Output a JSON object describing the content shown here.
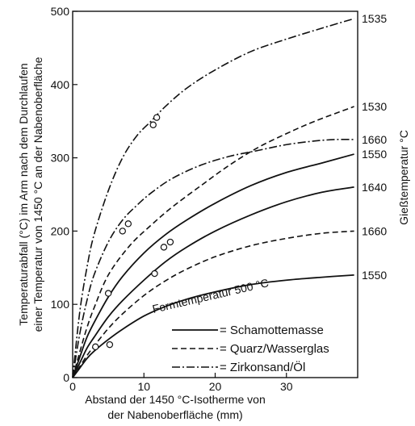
{
  "chart_data": {
    "type": "line",
    "title": "",
    "xlabel_lines": [
      "Abstand der 1450 °C-Isotherme von",
      "der Nabenoberfläche (mm)"
    ],
    "ylabel_lines": [
      "Temperaturabfall (°C) im Arm nach dem Durchlaufen",
      "einer Temperatur von 1450 °C an der Nabenoberfläche"
    ],
    "y2label": "Gießtemperatur °C",
    "xlim": [
      0,
      40
    ],
    "ylim": [
      0,
      500
    ],
    "xticks": [
      0,
      10,
      20,
      30
    ],
    "yticks": [
      0,
      100,
      200,
      300,
      400,
      500
    ],
    "xtick_labels": [
      "0",
      "10",
      "20",
      "30"
    ],
    "ytick_labels": [
      "0",
      "100",
      "200",
      "300",
      "400",
      "500"
    ],
    "grid": false,
    "legend_position": "bottom-right",
    "legend": [
      {
        "style": "solid",
        "label": "= Schamottemasse"
      },
      {
        "style": "dashed",
        "label": "= Quarz/Wasserglas"
      },
      {
        "style": "dashdot",
        "label": "= Zirkonsand/Öl"
      }
    ],
    "annotation": "Formtemperatur 500 °C",
    "series": [
      {
        "style": "dashdot",
        "end_label": "1535",
        "x": [
          0,
          1,
          2,
          3,
          5,
          7,
          9,
          11,
          13,
          16,
          20,
          25,
          30,
          35,
          39.5
        ],
        "y": [
          0,
          90,
          150,
          195,
          255,
          300,
          330,
          350,
          370,
          395,
          420,
          445,
          462,
          477,
          490
        ],
        "markers": [
          [
            11.3,
            345
          ],
          [
            11.8,
            355
          ],
          [
            7,
            200
          ],
          [
            7.8,
            210
          ]
        ]
      },
      {
        "style": "dashdot",
        "end_label": "1660",
        "x": [
          0,
          1,
          2,
          3,
          5,
          7,
          9,
          11,
          14,
          18,
          22,
          26,
          30,
          34,
          37,
          39.5
        ],
        "y": [
          0,
          60,
          105,
          140,
          185,
          215,
          235,
          252,
          272,
          290,
          302,
          310,
          318,
          323,
          325,
          325
        ]
      },
      {
        "style": "dashed",
        "end_label": "1530",
        "x": [
          0,
          1,
          2,
          3,
          5,
          8,
          11,
          14,
          18,
          22,
          26,
          30,
          34,
          39.5
        ],
        "y": [
          0,
          35,
          68,
          95,
          140,
          180,
          208,
          233,
          262,
          290,
          314,
          333,
          350,
          370
        ],
        "markers": [
          [
            5,
            115
          ]
        ]
      },
      {
        "style": "solid",
        "end_label": "1550",
        "x": [
          0,
          1,
          2,
          3,
          5,
          7,
          10,
          13,
          16,
          20,
          25,
          30,
          35,
          39.5
        ],
        "y": [
          0,
          28,
          55,
          75,
          110,
          138,
          170,
          195,
          215,
          238,
          262,
          280,
          293,
          305
        ],
        "markers": [
          [
            12.8,
            178
          ],
          [
            13.7,
            185
          ]
        ]
      },
      {
        "style": "solid",
        "end_label": "1640",
        "x": [
          0,
          1,
          2,
          3,
          5,
          7,
          10,
          13,
          16,
          20,
          25,
          30,
          35,
          39.5
        ],
        "y": [
          0,
          20,
          40,
          55,
          83,
          105,
          133,
          158,
          178,
          200,
          222,
          240,
          253,
          260
        ],
        "markers": [
          [
            11.5,
            142
          ]
        ]
      },
      {
        "style": "dashed",
        "end_label": "1660",
        "x": [
          0,
          1,
          2,
          3,
          5,
          7,
          10,
          13,
          16,
          20,
          25,
          30,
          35,
          39.5
        ],
        "y": [
          0,
          15,
          30,
          43,
          67,
          87,
          112,
          132,
          148,
          165,
          180,
          190,
          197,
          200
        ]
      },
      {
        "style": "solid",
        "end_label": "1550",
        "x": [
          0,
          1,
          2,
          3,
          5,
          7,
          10,
          13,
          16,
          20,
          25,
          30,
          35,
          39.5
        ],
        "y": [
          0,
          13,
          26,
          36,
          52,
          66,
          84,
          97,
          107,
          117,
          127,
          133,
          137,
          140
        ],
        "markers": [
          [
            3.2,
            42
          ],
          [
            5.2,
            45
          ]
        ]
      }
    ]
  }
}
